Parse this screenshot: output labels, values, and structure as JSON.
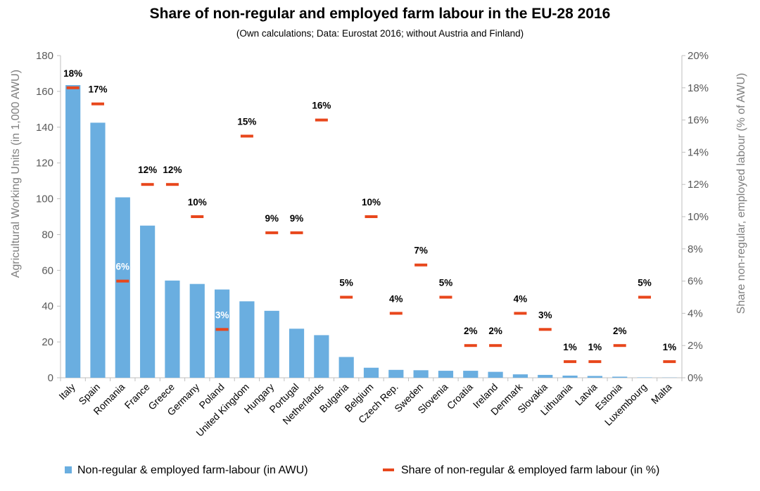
{
  "chart_data": {
    "type": "bar",
    "title": "Share of non-regular and employed farm labour in the EU-28 2016",
    "subtitle": "(Own calculations; Data: Eurostat 2016; without Austria and Finland)",
    "categories": [
      "Italy",
      "Spain",
      "Romania",
      "France",
      "Greece",
      "Germany",
      "Poland",
      "United Kingdom",
      "Hungary",
      "Portugal",
      "Netherlands",
      "Bulgaria",
      "Belgium",
      "Czech Rep.",
      "Sweden",
      "Slovenia",
      "Croatia",
      "Ireland",
      "Denmark",
      "Slovakia",
      "Lithuania",
      "Latvia",
      "Estonia",
      "Luxembourg",
      "Malta"
    ],
    "series": [
      {
        "name": "Non-regular & employed farm-labour (in AWU)",
        "type": "bar",
        "axis": "left",
        "color": "#6aaee0",
        "values": [
          163.5,
          142.5,
          100.8,
          85,
          54.3,
          52.4,
          49.3,
          42.7,
          37.4,
          27.4,
          23.8,
          11.6,
          5.6,
          4.4,
          4.2,
          3.9,
          3.9,
          3.3,
          1.9,
          1.6,
          1.2,
          1.0,
          0.6,
          0.2,
          0.1
        ]
      },
      {
        "name": "Share of non-regular & employed farm labour (in %)",
        "type": "marker",
        "axis": "right",
        "color": "#e8471c",
        "values": [
          18,
          17,
          6,
          12,
          12,
          10,
          3,
          15,
          9,
          9,
          16,
          5,
          10,
          4,
          7,
          5,
          2,
          2,
          4,
          3,
          1,
          1,
          2,
          5,
          1
        ],
        "labels": [
          "18%",
          "17%",
          "6%",
          "12%",
          "12%",
          "10%",
          "3%",
          "15%",
          "9%",
          "9%",
          "16%",
          "5%",
          "10%",
          "4%",
          "7%",
          "5%",
          "2%",
          "2%",
          "4%",
          "3%",
          "1%",
          "1%",
          "2%",
          "5%",
          "1%"
        ]
      }
    ],
    "ylabel": "Agricultural Working Units (in 1,000 AWU)",
    "y2label": "Share non-regular, employed labour (% of AWU)",
    "ylim": [
      0,
      180
    ],
    "y2lim": [
      0,
      20
    ],
    "yticks": [
      "0",
      "20",
      "40",
      "60",
      "80",
      "100",
      "120",
      "140",
      "160",
      "180"
    ],
    "y2ticks": [
      "0%",
      "2%",
      "4%",
      "6%",
      "8%",
      "10%",
      "12%",
      "14%",
      "16%",
      "18%",
      "20%"
    ],
    "grid": false,
    "legend_position": "bottom"
  }
}
